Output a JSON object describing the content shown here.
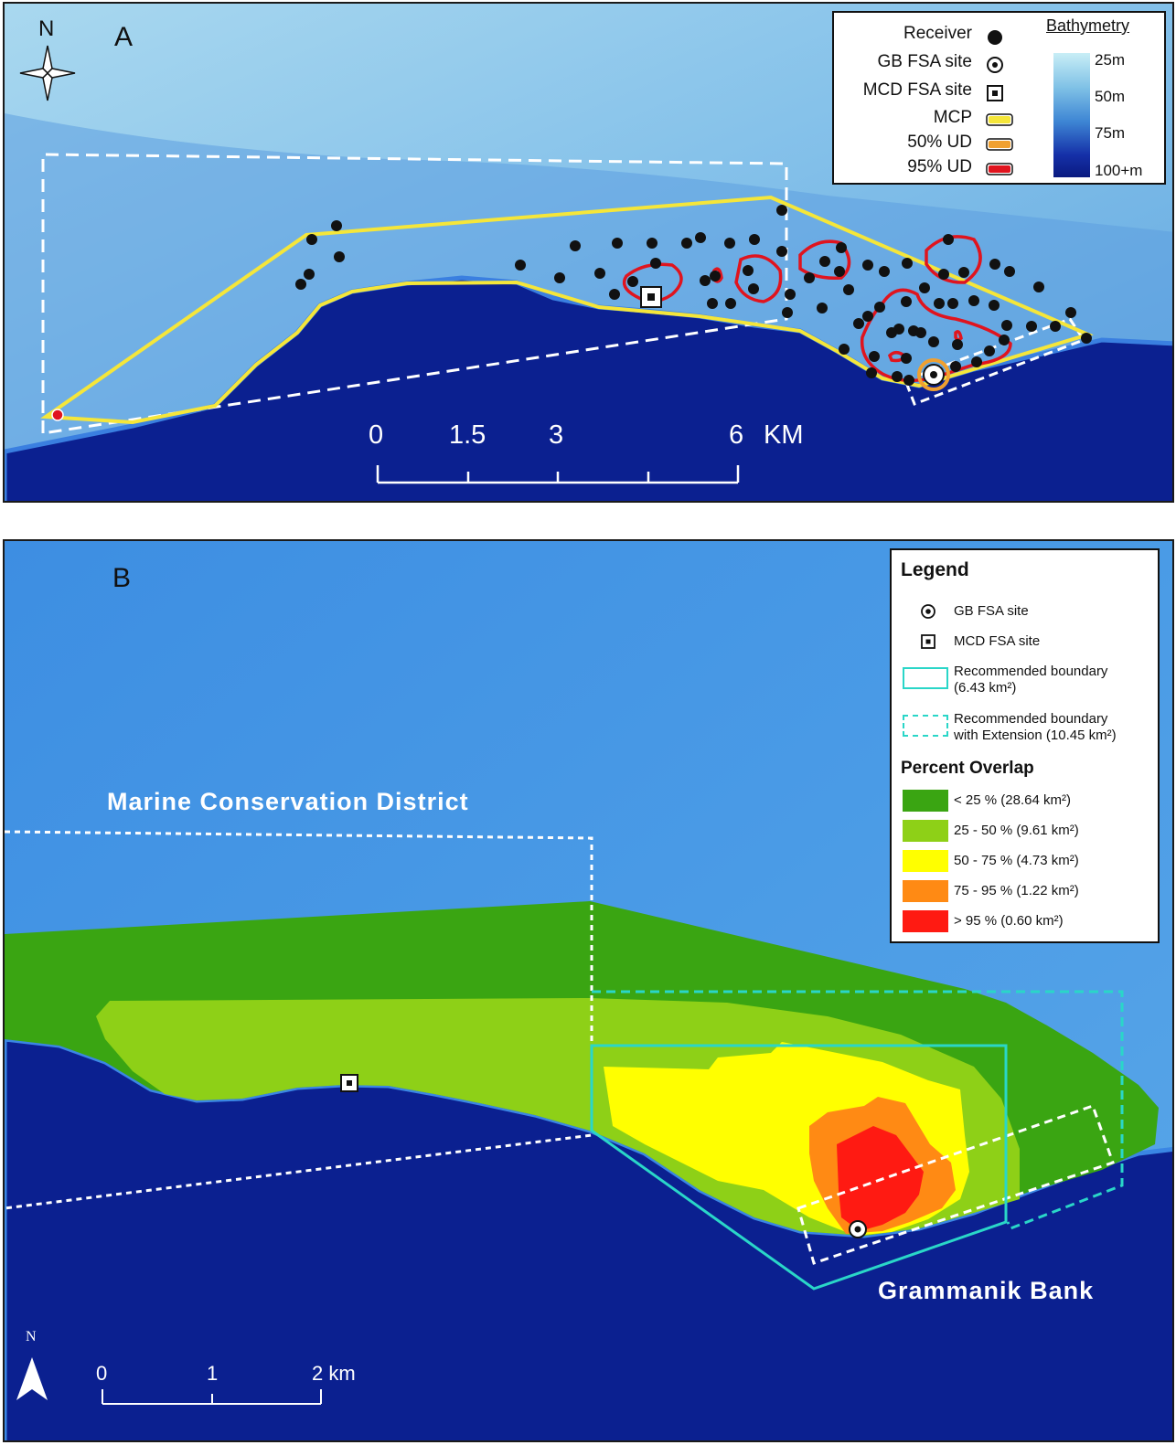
{
  "panel_a": {
    "label": "A",
    "north": "N",
    "legend": {
      "receiver": "Receiver",
      "gb_fsa": "GB FSA site",
      "mcd_fsa": "MCD FSA site",
      "mcp": "MCP",
      "ud50": "50% UD",
      "ud95": "95% UD",
      "bathymetry_title": "Bathymetry",
      "bathy_ticks": [
        "25m",
        "50m",
        "75m",
        "100+m"
      ]
    },
    "scale": {
      "labels": [
        "0",
        "1.5",
        "3",
        "6"
      ],
      "unit": "KM"
    },
    "colors": {
      "receiver": "#111111",
      "mcp": "#f5e63a",
      "ud50": "#f0a030",
      "ud95": "#e0141e"
    }
  },
  "panel_b": {
    "label": "B",
    "north": "N",
    "legend": {
      "title": "Legend",
      "gb_fsa": "GB FSA site",
      "mcd_fsa": "MCD FSA site",
      "rec_boundary_1": "Recommended boundary",
      "rec_boundary_2": "(6.43 km²)",
      "rec_ext_1": "Recommended boundary",
      "rec_ext_2": "with Extension (10.45 km²)",
      "overlap_title": "Percent Overlap",
      "classes": [
        {
          "label": "< 25 % (28.64 km²)",
          "color": "#3aa512"
        },
        {
          "label": "25 - 50 % (9.61 km²)",
          "color": "#8ed017"
        },
        {
          "label": "50 - 75 % (4.73 km²)",
          "color": "#ffff00"
        },
        {
          "label": "75 - 95 % (1.22 km²)",
          "color": "#ff8a14"
        },
        {
          "label": "> 95 % (0.60 km²)",
          "color": "#ff1a12"
        }
      ]
    },
    "map_labels": {
      "mcd": "Marine Conservation District",
      "gb": "Grammanik Bank"
    },
    "scale": {
      "labels": [
        "0",
        "1",
        "2 km"
      ]
    },
    "colors": {
      "boundary": "#2ad6c8"
    }
  }
}
